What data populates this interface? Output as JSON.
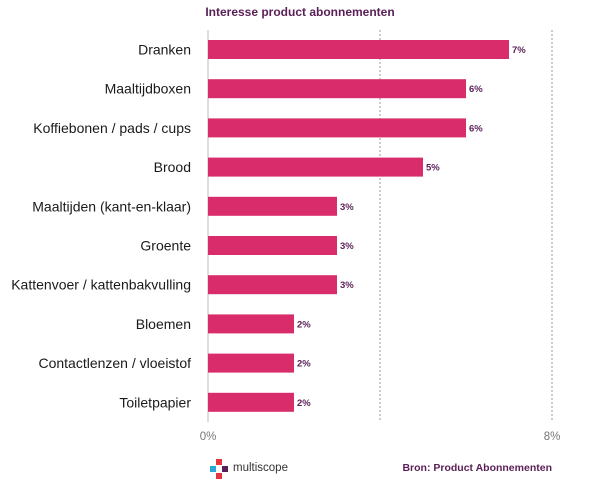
{
  "chart_data": {
    "type": "bar",
    "orientation": "horizontal",
    "title": "Interesse product abonnementen",
    "categories": [
      "Dranken",
      "Maaltijdboxen",
      "Koffiebonen / pads / cups",
      "Brood",
      "Maaltijden (kant-en-klaar)",
      "Groente",
      "Kattenvoer / kattenbakvulling",
      "Bloemen",
      "Contactlenzen / vloeistof",
      "Toiletpapier"
    ],
    "values": [
      7,
      6,
      6,
      5,
      3,
      3,
      3,
      2,
      2,
      2
    ],
    "value_labels": [
      "7%",
      "6%",
      "6%",
      "5%",
      "3%",
      "3%",
      "3%",
      "2%",
      "2%",
      "2%"
    ],
    "xlim": [
      0,
      8
    ],
    "xtick_labels": [
      "0%",
      "8%"
    ],
    "grid": "dotted vertical",
    "bar_color": "#d92d6b",
    "title_color": "#5a1f57"
  },
  "footer": {
    "logo_text": "multiscope",
    "source": "Bron: Product Abonnementen"
  },
  "colors": {
    "logo_red": "#e8323c",
    "logo_blue": "#2aa6d8",
    "logo_purple": "#5a1f57"
  }
}
